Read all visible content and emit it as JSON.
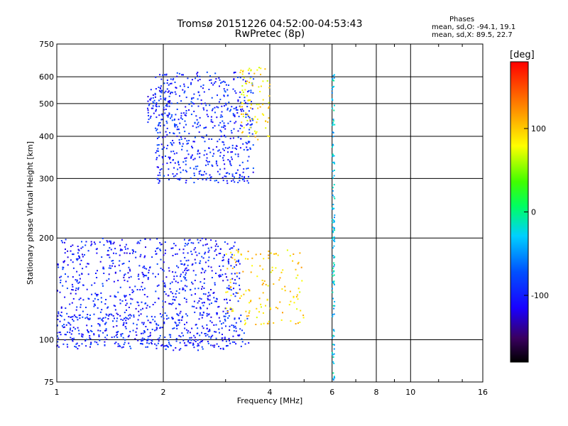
{
  "header": {
    "title": "Tromsø 20151226 04:52:00-04:53:43",
    "subtitle": "RwPretec (8p)"
  },
  "phase_info": {
    "title": "Phases",
    "o_mode": "mean, sd,O: -94.1, 19.1",
    "x_mode": "mean, sd,X:  89.5, 22.7"
  },
  "colorbar": {
    "unit": "[deg]",
    "tick_labels": [
      "100",
      "0",
      "-100"
    ],
    "tick_values": [
      100,
      0,
      -100
    ],
    "range": [
      -180,
      180
    ]
  },
  "chart_data": {
    "type": "scatter",
    "title": "Tromsø 20151226 04:52:00-04:53:43",
    "subtitle": "RwPretec (8p)",
    "xlabel": "Frequency [MHz]",
    "ylabel": "Stationary phase Virtual Height [km]",
    "xscale": "log",
    "yscale": "log",
    "xlim": [
      1,
      16
    ],
    "ylim": [
      75,
      750
    ],
    "x_ticks": [
      1,
      2,
      4,
      6,
      8,
      10,
      16
    ],
    "x_tick_labels": [
      "1",
      "2",
      "4",
      "6",
      "8",
      "10",
      "16"
    ],
    "y_ticks": [
      75,
      100,
      200,
      300,
      400,
      500,
      600,
      750
    ],
    "y_tick_labels": [
      "75",
      "100",
      "200",
      "300",
      "400",
      "500",
      "600",
      "750"
    ],
    "grid": true,
    "color_variable": "phase [deg]",
    "clusters": [
      {
        "name": "O-mode low region",
        "freq_range": [
          1.0,
          3.3
        ],
        "height_range": [
          95,
          200
        ],
        "phase": -100,
        "count": 900
      },
      {
        "name": "O-mode low lower edge",
        "freq_range": [
          1.0,
          3.5
        ],
        "height_range": [
          93,
          120
        ],
        "phase": -95,
        "count": 220
      },
      {
        "name": "O-mode upper trace",
        "freq_range": [
          1.9,
          3.6
        ],
        "height_range": [
          290,
          620
        ],
        "phase": -95,
        "count": 600
      },
      {
        "name": "O-mode upper branch",
        "freq_range": [
          1.8,
          2.1
        ],
        "height_range": [
          440,
          560
        ],
        "phase": -100,
        "count": 60
      },
      {
        "name": "X-mode upper trace",
        "freq_range": [
          3.3,
          4.0
        ],
        "height_range": [
          390,
          640
        ],
        "phase": 90,
        "count": 90
      },
      {
        "name": "X-mode low region",
        "freq_range": [
          3.0,
          5.0
        ],
        "height_range": [
          110,
          185
        ],
        "phase": 95,
        "count": 140
      },
      {
        "name": "Vertical line at 6 MHz",
        "freq_range": [
          6.0,
          6.1
        ],
        "height_range": [
          75,
          650
        ],
        "phase": -30,
        "count": 120
      }
    ]
  }
}
